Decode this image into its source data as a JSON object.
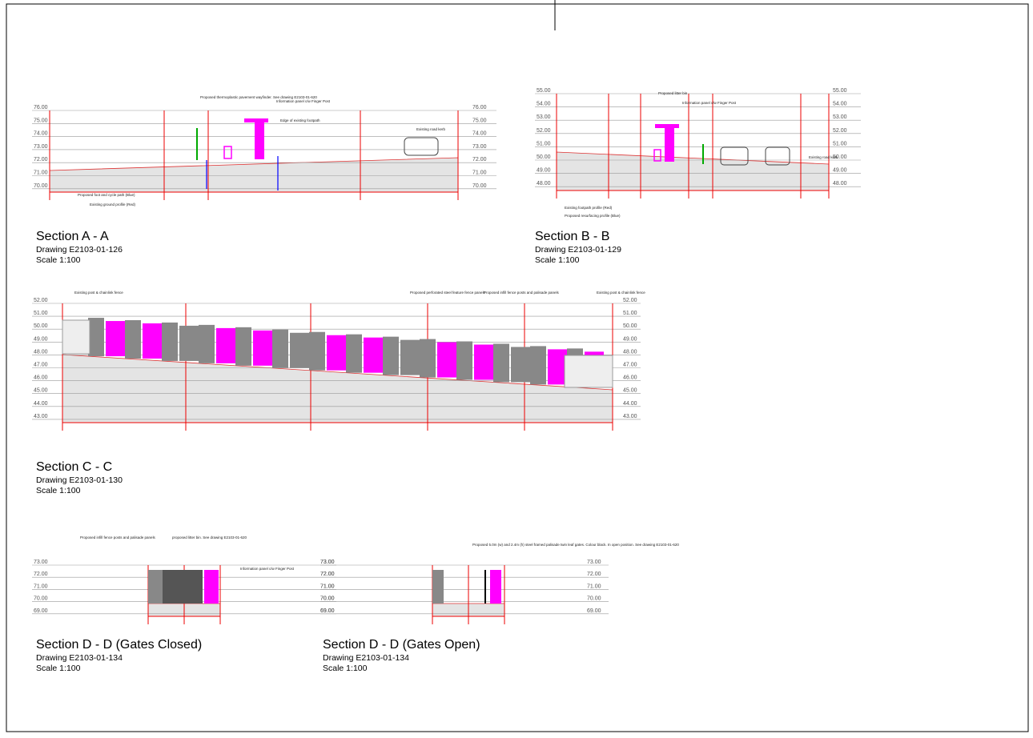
{
  "sections": [
    {
      "title": "Section A - A",
      "drawing": "Drawing E2103-01-126",
      "scale": "Scale 1:100",
      "levels": [
        "76.00",
        "75.00",
        "74.00",
        "73.00",
        "72.00",
        "71.00",
        "70.00"
      ],
      "notes": [
        "Proposed foot and cycle path (Blue)",
        "Existing ground profile (Red)",
        "Proposed thermoplastic pavement wayfinder. See drawing E2103-01-620",
        "Information panel c/w Finger Post",
        "Edge of existing footpath",
        "Existing road kerb"
      ]
    },
    {
      "title": "Section B - B",
      "drawing": "Drawing E2103-01-129",
      "scale": "Scale 1:100",
      "levels": [
        "55.00",
        "54.00",
        "53.00",
        "52.00",
        "51.00",
        "50.00",
        "49.00",
        "48.00"
      ],
      "notes": [
        "Existing footpath profile (Red)",
        "Proposed resurfacing profile (Blue)",
        "Proposed litter bin",
        "Information panel c/w Finger Post",
        "Existing road kerb"
      ]
    },
    {
      "title": "Section C - C",
      "drawing": "Drawing E2103-01-130",
      "scale": "Scale 1:100",
      "levels": [
        "52.00",
        "51.00",
        "50.00",
        "49.00",
        "48.00",
        "47.00",
        "46.00",
        "45.00",
        "44.00",
        "43.00"
      ],
      "notes": [
        "Existing post & chainlink fence",
        "Proposed perforated steel feature fence panels",
        "Proposed infill fence posts and palisade panels",
        "Existing post & chainlink fence"
      ]
    },
    {
      "title": "Section D - D (Gates Closed)",
      "drawing": "Drawing E2103-01-134",
      "scale": "Scale 1:100",
      "levels": [
        "73.00",
        "72.00",
        "71.00",
        "70.00",
        "69.00"
      ],
      "notes": [
        "Proposed infill fence posts and palisade panels",
        "proposed litter bin. See drawing E2103-01-620",
        "Information panel c/w Finger Post"
      ]
    },
    {
      "title": "Section D - D (Gates Open)",
      "drawing": "Drawing E2103-01-134",
      "scale": "Scale 1:100",
      "levels": [
        "73.00",
        "72.00",
        "71.00",
        "70.00",
        "69.00"
      ],
      "notes": [
        "Proposed 5.0m (w) and 2.4m (h) steel framed palisade twin leaf gates. Colour black. In open position. See drawing E2103-01-620"
      ]
    }
  ]
}
